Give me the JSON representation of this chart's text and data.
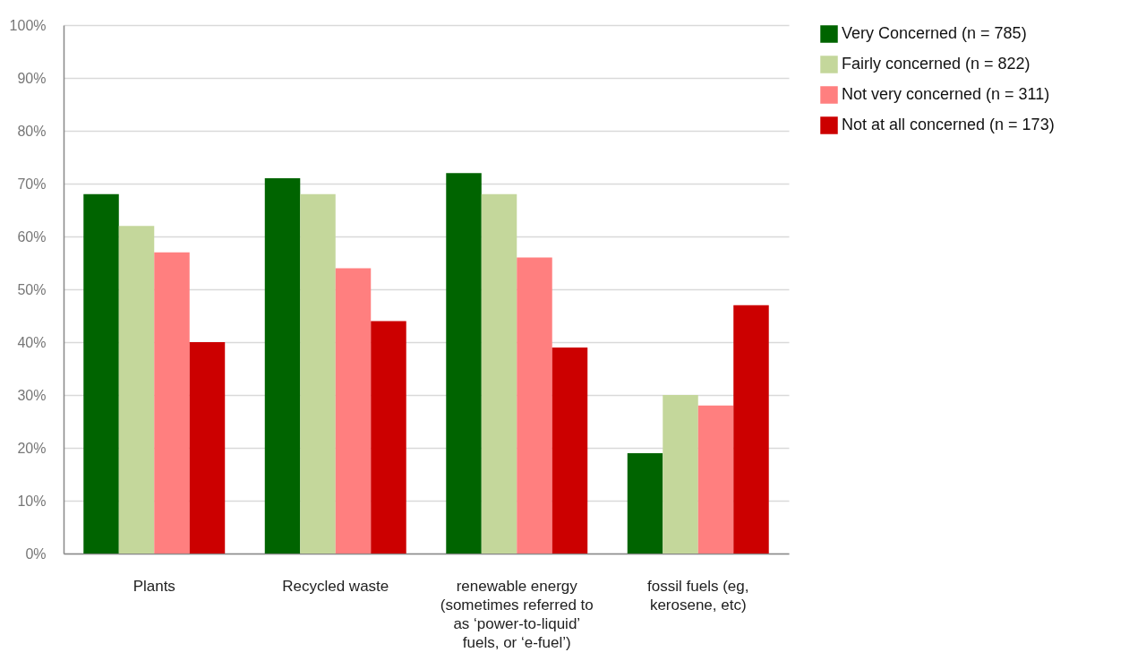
{
  "chart_data": {
    "type": "bar",
    "categories": [
      "Plants",
      "Recycled waste",
      "renewable energy (sometimes referred to as ‘power-to-liquid’ fuels, or ‘e-fuel’)",
      "fossil fuels (eg, kerosene, etc)"
    ],
    "series": [
      {
        "name": "Very Concerned (n = 785)",
        "color": "#006400",
        "values": [
          68,
          71,
          72,
          19
        ]
      },
      {
        "name": "Fairly concerned (n = 822)",
        "color": "#c4d79b",
        "values": [
          62,
          68,
          68,
          30
        ]
      },
      {
        "name": "Not very concerned (n = 311)",
        "color": "#ff7f7f",
        "values": [
          57,
          54,
          56,
          28
        ]
      },
      {
        "name": "Not at all concerned (n = 173)",
        "color": "#cc0000",
        "values": [
          40,
          44,
          39,
          47
        ]
      }
    ],
    "ylim": [
      0,
      100
    ],
    "yticks": [
      {
        "value": 0,
        "label": "0%"
      },
      {
        "value": 10,
        "label": "10%"
      },
      {
        "value": 20,
        "label": "20%"
      },
      {
        "value": 30,
        "label": "30%"
      },
      {
        "value": 40,
        "label": "40%"
      },
      {
        "value": 50,
        "label": "50%"
      },
      {
        "value": 60,
        "label": "60%"
      },
      {
        "value": 70,
        "label": "70%"
      },
      {
        "value": 80,
        "label": "80%"
      },
      {
        "value": 90,
        "label": "90%"
      },
      {
        "value": 100,
        "label": "100%"
      }
    ],
    "grid": "y",
    "legend": "right"
  }
}
